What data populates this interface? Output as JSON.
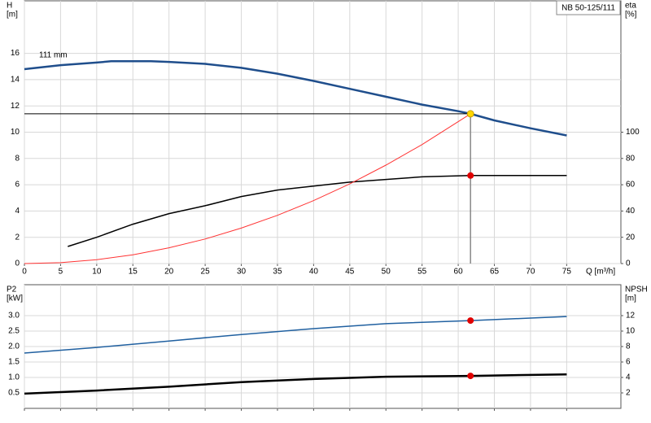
{
  "chart_data": [
    {
      "type": "line",
      "ylabel": "H",
      "yunit": "[m]",
      "y2label": "eta",
      "y2unit": "[%]",
      "xlabel": "Q [m³/h]",
      "model": "NB 50-125/111",
      "annotation": "111 mm",
      "grid": true,
      "show_xtick_labels": true,
      "xlim": [
        0,
        82.5
      ],
      "xticks": [
        0,
        5,
        10,
        15,
        20,
        25,
        30,
        35,
        40,
        45,
        50,
        55,
        60,
        65,
        70,
        75
      ],
      "ylim": [
        0,
        20
      ],
      "yticks": [
        0,
        2,
        4,
        6,
        8,
        10,
        12,
        14,
        16
      ],
      "y2lim": [
        0,
        200
      ],
      "y2ticks": [
        0,
        20,
        40,
        60,
        80,
        100
      ],
      "series": [
        {
          "color": "#1f4e8c",
          "width": 2.5,
          "x": [
            0,
            5,
            10,
            12,
            17.5,
            20,
            25,
            30,
            35,
            40,
            45,
            50,
            55,
            60,
            61.7,
            65,
            70,
            75
          ],
          "values": [
            14.8,
            15.1,
            15.3,
            15.4,
            15.4,
            15.35,
            15.2,
            14.9,
            14.45,
            13.9,
            13.3,
            12.7,
            12.1,
            11.6,
            11.4,
            10.9,
            10.3,
            9.75
          ]
        },
        {
          "color": "#000000",
          "width": 1.5,
          "axis": "y2",
          "x": [
            6,
            10,
            15,
            20,
            25,
            30,
            35,
            40,
            45,
            50,
            55,
            61.7,
            65,
            70,
            75
          ],
          "values": [
            13,
            20,
            30,
            38,
            44,
            51,
            56,
            59,
            62,
            64,
            66,
            67,
            67,
            67,
            67
          ]
        },
        {
          "color": "#ff3333",
          "width": 1,
          "x": [
            0,
            5,
            10,
            15,
            20,
            25,
            30,
            35,
            40,
            45,
            50,
            55,
            61.7
          ],
          "values": [
            0,
            0.07,
            0.3,
            0.67,
            1.2,
            1.87,
            2.7,
            3.67,
            4.79,
            6.06,
            7.49,
            9.06,
            11.4
          ]
        },
        {
          "color": "#000000",
          "width": 1,
          "x": [
            0,
            61.7
          ],
          "values": [
            11.4,
            11.4
          ]
        },
        {
          "color": "#888888",
          "width": 1.5,
          "x": [
            61.7,
            61.7
          ],
          "values": [
            0,
            11.4
          ]
        }
      ],
      "markers": [
        {
          "x": 61.7,
          "y": 11.4,
          "color": "#ffd700"
        },
        {
          "x": 61.7,
          "y": 67,
          "axis": "y2",
          "color": "#e00000"
        }
      ]
    },
    {
      "type": "line",
      "ylabel": "P2",
      "yunit": "[kW]",
      "y2label": "NPSH",
      "y2unit": "[m]",
      "grid": true,
      "show_xtick_labels": false,
      "xlim": [
        0,
        82.5
      ],
      "xticks": [
        0,
        5,
        10,
        15,
        20,
        25,
        30,
        35,
        40,
        45,
        50,
        55,
        60,
        65,
        70,
        75
      ],
      "ylim": [
        0,
        4
      ],
      "yticks": [
        0.5,
        {
          "value": 1,
          "label": "1.0"
        },
        1.5,
        {
          "value": 2,
          "label": "2.0"
        },
        2.5,
        {
          "value": 3,
          "label": "3.0"
        }
      ],
      "y2lim": [
        0,
        16
      ],
      "y2ticks": [
        2,
        4,
        6,
        8,
        10,
        12
      ],
      "series": [
        {
          "color": "#2060a0",
          "width": 1.5,
          "x": [
            0,
            10,
            20,
            30,
            40,
            50,
            61.7,
            70,
            75
          ],
          "values": [
            1.79,
            1.97,
            2.18,
            2.39,
            2.58,
            2.74,
            2.84,
            2.92,
            2.97
          ]
        },
        {
          "color": "#000000",
          "width": 2.5,
          "axis": "y2",
          "x": [
            0,
            10,
            20,
            30,
            40,
            50,
            61.7,
            75
          ],
          "values": [
            1.9,
            2.3,
            2.8,
            3.4,
            3.8,
            4.1,
            4.2,
            4.4
          ]
        }
      ],
      "markers": [
        {
          "x": 61.7,
          "y": 2.84,
          "color": "#e00000"
        },
        {
          "x": 61.7,
          "y": 4.2,
          "axis": "y2",
          "color": "#e00000"
        }
      ]
    }
  ]
}
